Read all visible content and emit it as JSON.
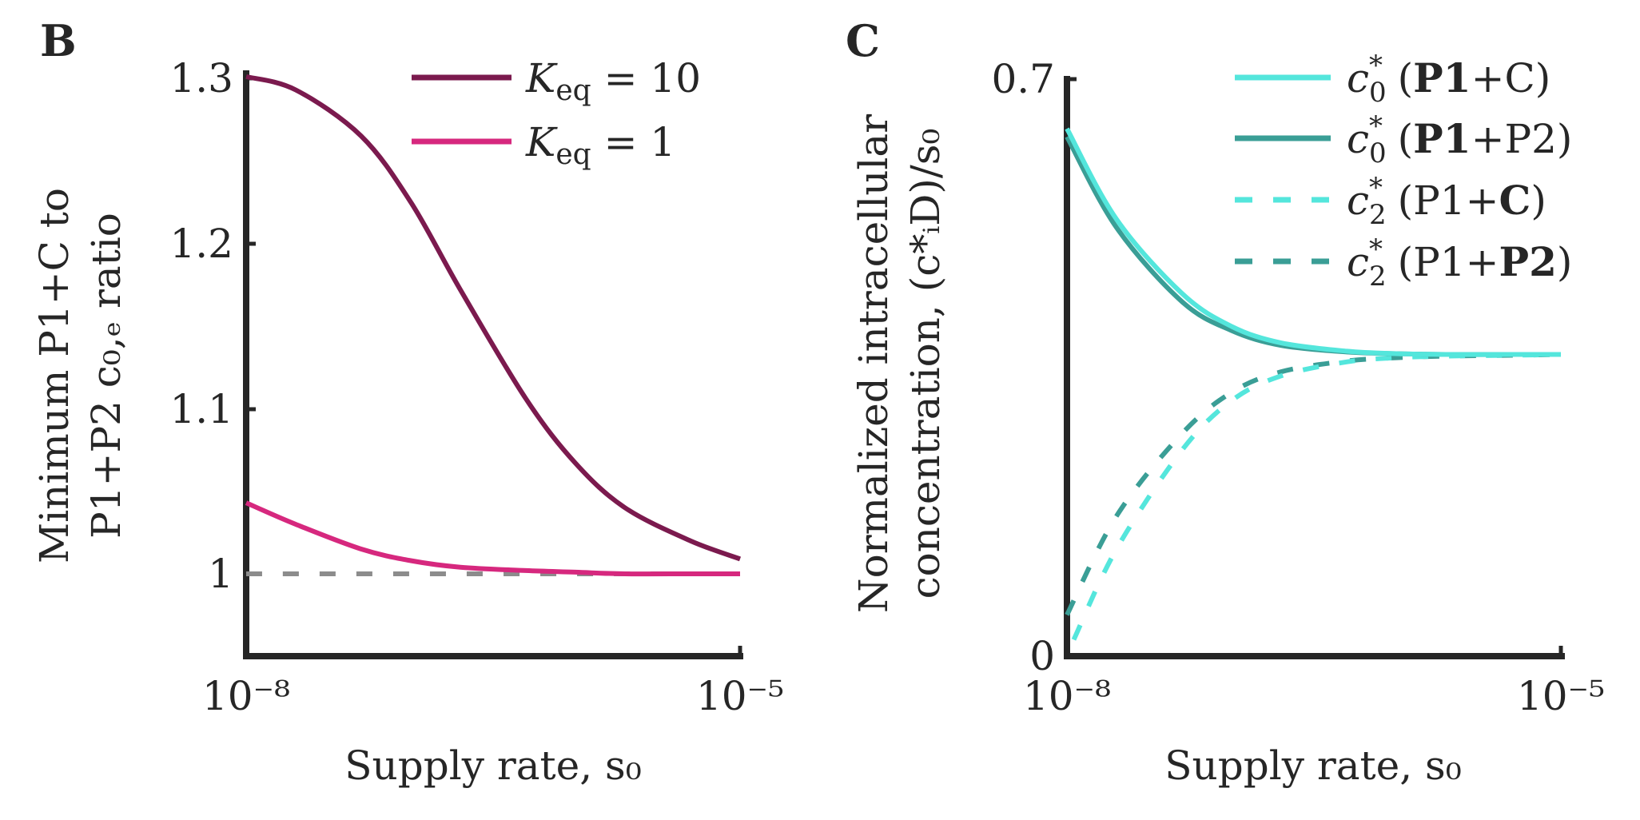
{
  "chart_data": [
    {
      "panel": "B",
      "type": "line",
      "xlabel": "Supply rate, s₀",
      "ylabel_lines": [
        "Minimum P1+C to",
        "P1+P2 c₀,ₑ ratio"
      ],
      "x_scale": "log",
      "xlim": [
        1e-08,
        1e-05
      ],
      "ylim": [
        0.95,
        1.3
      ],
      "xticks": [
        "10⁻⁸",
        "10⁻⁵"
      ],
      "yticks": [
        {
          "value": 1.3,
          "label": "1.3"
        },
        {
          "value": 1.2,
          "label": "1.2"
        },
        {
          "value": 1.1,
          "label": "1.1"
        },
        {
          "value": 1.0,
          "label": "1"
        }
      ],
      "legend": "top-right",
      "series": [
        {
          "name": "K_eq = 10",
          "name_parts": {
            "sym": "K",
            "sub": "eq",
            "rest": " = 10"
          },
          "color": "#7b1a4e",
          "style": "solid",
          "x": [
            1e-08,
            2e-08,
            5e-08,
            1e-07,
            2e-07,
            5e-07,
            1e-06,
            2e-06,
            5e-06,
            1e-05
          ],
          "y": [
            1.301,
            1.293,
            1.265,
            1.225,
            1.172,
            1.106,
            1.067,
            1.04,
            1.02,
            1.009
          ]
        },
        {
          "name": "K_eq = 1",
          "name_parts": {
            "sym": "K",
            "sub": "eq",
            "rest": " = 1"
          },
          "color": "#d6287e",
          "style": "solid",
          "x": [
            1e-08,
            2e-08,
            5e-08,
            1e-07,
            2e-07,
            5e-07,
            1e-06,
            2e-06,
            5e-06,
            1e-05
          ],
          "y": [
            1.043,
            1.03,
            1.015,
            1.008,
            1.004,
            1.002,
            1.001,
            1.0,
            1.0,
            1.0
          ]
        },
        {
          "name": "",
          "color": "#8c8c8c",
          "style": "dashed",
          "legend": false,
          "x": [
            1e-08,
            1e-05
          ],
          "y": [
            1.0,
            1.0
          ]
        }
      ]
    },
    {
      "panel": "C",
      "type": "line",
      "xlabel": "Supply rate, s₀",
      "ylabel_lines": [
        "Normalized intracellular",
        "concentration, (c*ᵢD)/s₀"
      ],
      "x_scale": "log",
      "xlim": [
        1e-08,
        1e-05
      ],
      "ylim": [
        0,
        0.7
      ],
      "xticks": [
        "10⁻⁸",
        "10⁻⁵"
      ],
      "yticks": [
        {
          "value": 0.7,
          "label": "0.7"
        },
        {
          "value": 0,
          "label": "0"
        }
      ],
      "legend": "top-right",
      "series": [
        {
          "name": "c*₀ (P1+C)",
          "name_parts": {
            "sym": "c",
            "sub": "0",
            "pre": "(",
            "bold": "P1",
            "post": "+C)"
          },
          "color": "#54e6dc",
          "style": "solid",
          "x": [
            1e-08,
            2e-08,
            5e-08,
            1e-07,
            2e-07,
            5e-07,
            1e-06,
            2e-06,
            5e-06,
            1e-05
          ],
          "y": [
            0.64,
            0.53,
            0.44,
            0.4,
            0.38,
            0.37,
            0.367,
            0.366,
            0.366,
            0.366
          ]
        },
        {
          "name": "c*₀ (P1+P2)",
          "name_parts": {
            "sym": "c",
            "sub": "0",
            "pre": "(",
            "bold": "P1",
            "post": "+P2)"
          },
          "color": "#3a9e96",
          "style": "solid",
          "x": [
            1e-08,
            2e-08,
            5e-08,
            1e-07,
            2e-07,
            5e-07,
            1e-06,
            2e-06,
            5e-06,
            1e-05
          ],
          "y": [
            0.63,
            0.52,
            0.43,
            0.395,
            0.377,
            0.369,
            0.367,
            0.366,
            0.366,
            0.366
          ]
        },
        {
          "name": "c*₂ (P1+C)",
          "name_parts": {
            "sym": "c",
            "sub": "2",
            "pre": "(P1+",
            "bold": "C",
            "post": ")"
          },
          "color": "#54e6dc",
          "style": "dashed",
          "x": [
            1.1e-08,
            2e-08,
            5e-08,
            1e-07,
            2e-07,
            5e-07,
            1e-06,
            2e-06,
            5e-06,
            1e-05
          ],
          "y": [
            0.02,
            0.13,
            0.25,
            0.31,
            0.34,
            0.357,
            0.362,
            0.364,
            0.365,
            0.366
          ]
        },
        {
          "name": "c*₂ (P1+P2)",
          "name_parts": {
            "sym": "c",
            "sub": "2",
            "pre": "(P1+",
            "bold": "P2",
            "post": ")"
          },
          "color": "#3a9e96",
          "style": "dashed",
          "x": [
            1e-08,
            2e-08,
            5e-08,
            1e-07,
            2e-07,
            5e-07,
            1e-06,
            2e-06,
            5e-06,
            1e-05
          ],
          "y": [
            0.05,
            0.17,
            0.27,
            0.32,
            0.345,
            0.358,
            0.362,
            0.364,
            0.365,
            0.366
          ]
        }
      ]
    }
  ]
}
